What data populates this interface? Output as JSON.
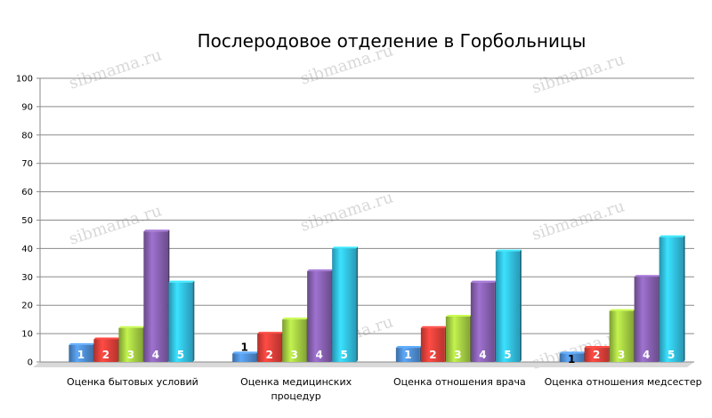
{
  "chart_data": {
    "type": "bar",
    "title": "Послеродовое отделение в Горбольницы",
    "categories": [
      [
        "Оценка бытовых условий"
      ],
      [
        "Оценка медицинских",
        "процедур"
      ],
      [
        "Оценка отношения врача"
      ],
      [
        "Оценка отношения медсестер"
      ]
    ],
    "series": [
      {
        "label": "1",
        "color": "#4a86c8",
        "values": [
          6,
          3,
          5,
          3
        ]
      },
      {
        "label": "2",
        "color": "#d93c36",
        "values": [
          8,
          10,
          12,
          5
        ]
      },
      {
        "label": "3",
        "color": "#9bc23e",
        "values": [
          12,
          15,
          16,
          18
        ]
      },
      {
        "label": "4",
        "color": "#7f5ba6",
        "values": [
          46,
          32,
          28,
          30
        ]
      },
      {
        "label": "5",
        "color": "#2fb5d9",
        "values": [
          28,
          40,
          39,
          44
        ]
      }
    ],
    "ylim": [
      0,
      100
    ],
    "yticks": [
      0,
      10,
      20,
      30,
      40,
      50,
      60,
      70,
      80,
      90,
      100
    ],
    "grid": true,
    "legend": "none"
  },
  "watermark": "sibmama.ru"
}
